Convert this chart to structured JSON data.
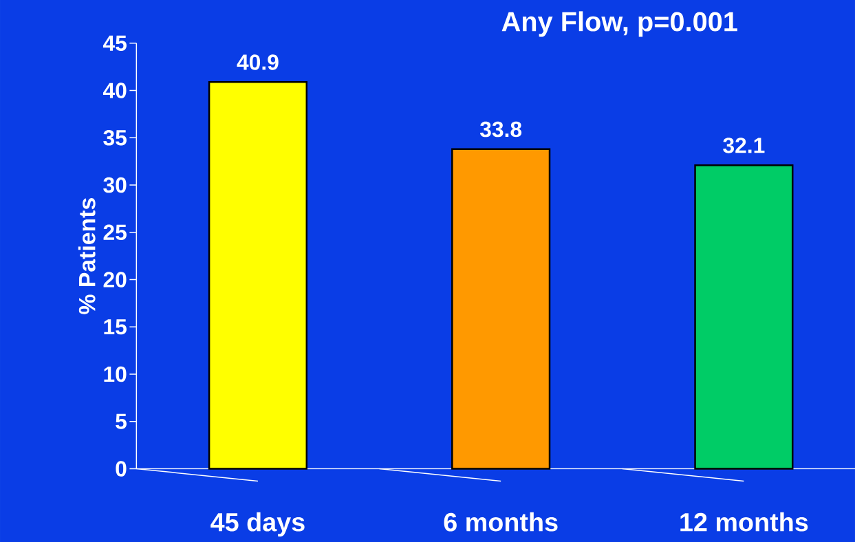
{
  "chart_data": {
    "type": "bar",
    "title": "Any Flow, p=0.001",
    "ylabel": "% Patients",
    "categories": [
      "45 days",
      "6 months",
      "12 months"
    ],
    "values": [
      40.9,
      33.8,
      32.1
    ],
    "colors": [
      "#ffff00",
      "#ff9900",
      "#00cc66"
    ],
    "ylim": [
      0,
      45
    ],
    "yticks": [
      0,
      5,
      10,
      15,
      20,
      25,
      30,
      35,
      40,
      45
    ],
    "data_labels": true,
    "grid": false
  }
}
